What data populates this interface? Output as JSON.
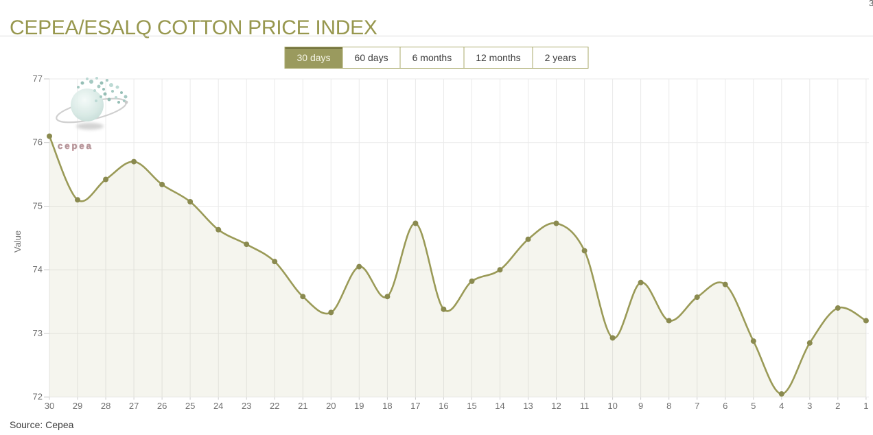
{
  "header": {
    "title": "CEPEA/ESALQ COTTON PRICE INDEX"
  },
  "range_tabs": [
    {
      "label": "30 days",
      "selected": true
    },
    {
      "label": "60 days",
      "selected": false
    },
    {
      "label": "6 months",
      "selected": false
    },
    {
      "label": "12 months",
      "selected": false
    },
    {
      "label": "2 years",
      "selected": false
    }
  ],
  "watermark": {
    "text": "cepea"
  },
  "footer": {
    "source": "Source: Cepea"
  },
  "edge": {
    "clipped_glyph": "3"
  },
  "colors": {
    "accent_olive": "#97974e",
    "tab_border": "#a9a96b",
    "tab_selected_bg": "#9a9a5e",
    "tab_selected_top": "#6f6f3b",
    "tab_selected_text": "#f6f6e8",
    "line": "#9a9a57",
    "marker": "#8a8a4f",
    "area_fill": "rgba(154,154,87,0.10)",
    "grid": "#e9e9e9",
    "axis_text": "#6f6f6f",
    "watermark_pink": "#d4a0a6"
  },
  "chart_data": {
    "type": "area",
    "title": "CEPEA/ESALQ COTTON PRICE INDEX",
    "xlabel": "",
    "ylabel": "Value",
    "x": [
      "30",
      "29",
      "28",
      "27",
      "26",
      "25",
      "24",
      "23",
      "22",
      "21",
      "20",
      "19",
      "18",
      "17",
      "16",
      "15",
      "14",
      "13",
      "12",
      "11",
      "10",
      "9",
      "8",
      "7",
      "6",
      "5",
      "4",
      "3",
      "2",
      "1"
    ],
    "values": [
      76.1,
      75.1,
      75.42,
      75.7,
      75.34,
      75.07,
      74.63,
      74.4,
      74.13,
      73.58,
      73.33,
      74.05,
      73.58,
      74.73,
      73.38,
      73.82,
      74.0,
      74.48,
      74.73,
      74.3,
      72.93,
      73.8,
      73.2,
      73.57,
      73.77,
      72.88,
      72.05,
      72.85,
      73.4,
      73.2
    ],
    "yticks": [
      77,
      76,
      75,
      74,
      73,
      72
    ],
    "ylim": [
      72,
      77
    ],
    "grid": true,
    "legend": false,
    "smooth": true,
    "line_color": "#9a9a57",
    "marker_color": "#8a8a4f",
    "fill_color": "rgba(154,154,87,0.10)",
    "grid_color": "#e9e9e9"
  }
}
